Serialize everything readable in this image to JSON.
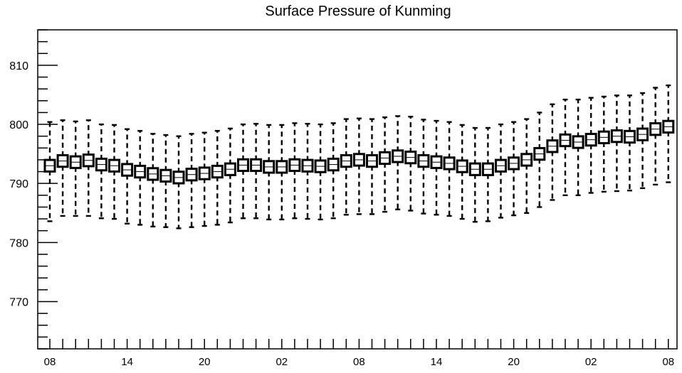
{
  "chart_data": {
    "type": "box",
    "title": "Surface Pressure of Kunming",
    "xlabel": "",
    "ylabel": "",
    "ylim": [
      762,
      816
    ],
    "y_ticks": [
      770,
      780,
      790,
      800,
      810
    ],
    "x_tick_labels": [
      "08",
      "14",
      "20",
      "02",
      "08",
      "14",
      "20",
      "02",
      "08"
    ],
    "x_tick_positions": [
      0,
      6,
      12,
      18,
      24,
      30,
      36,
      42,
      48
    ],
    "grid": false,
    "series": [
      {
        "points": [
          {
            "x": 0,
            "median": 793.0,
            "q1": 792.2,
            "q3": 793.8,
            "whisker_low": 783.6,
            "whisker_high": 800.4
          },
          {
            "x": 1,
            "median": 793.8,
            "q1": 793.0,
            "q3": 794.6,
            "whisker_low": 784.5,
            "whisker_high": 800.7
          },
          {
            "x": 2,
            "median": 793.6,
            "q1": 792.8,
            "q3": 794.4,
            "whisker_low": 784.5,
            "whisker_high": 800.5
          },
          {
            "x": 3,
            "median": 793.9,
            "q1": 793.1,
            "q3": 794.7,
            "whisker_low": 784.5,
            "whisker_high": 800.7
          },
          {
            "x": 4,
            "median": 793.2,
            "q1": 792.4,
            "q3": 794.0,
            "whisker_low": 784.1,
            "whisker_high": 800.0
          },
          {
            "x": 5,
            "median": 793.0,
            "q1": 792.2,
            "q3": 793.8,
            "whisker_low": 784.0,
            "whisker_high": 799.9
          },
          {
            "x": 6,
            "median": 792.3,
            "q1": 791.5,
            "q3": 793.1,
            "whisker_low": 783.2,
            "whisker_high": 799.2
          },
          {
            "x": 7,
            "median": 792.0,
            "q1": 791.2,
            "q3": 792.8,
            "whisker_low": 783.0,
            "whisker_high": 798.9
          },
          {
            "x": 8,
            "median": 791.6,
            "q1": 790.8,
            "q3": 792.4,
            "whisker_low": 782.7,
            "whisker_high": 798.4
          },
          {
            "x": 9,
            "median": 791.3,
            "q1": 790.5,
            "q3": 792.1,
            "whisker_low": 782.6,
            "whisker_high": 798.2
          },
          {
            "x": 10,
            "median": 791.0,
            "q1": 790.2,
            "q3": 791.8,
            "whisker_low": 782.4,
            "whisker_high": 798.0
          },
          {
            "x": 11,
            "median": 791.5,
            "q1": 790.7,
            "q3": 792.3,
            "whisker_low": 782.6,
            "whisker_high": 798.4
          },
          {
            "x": 12,
            "median": 791.7,
            "q1": 790.9,
            "q3": 792.5,
            "whisker_low": 782.8,
            "whisker_high": 798.6
          },
          {
            "x": 13,
            "median": 792.0,
            "q1": 791.2,
            "q3": 792.8,
            "whisker_low": 783.0,
            "whisker_high": 798.9
          },
          {
            "x": 14,
            "median": 792.4,
            "q1": 791.6,
            "q3": 793.2,
            "whisker_low": 783.4,
            "whisker_high": 799.3
          },
          {
            "x": 15,
            "median": 793.1,
            "q1": 792.3,
            "q3": 793.9,
            "whisker_low": 784.1,
            "whisker_high": 800.0
          },
          {
            "x": 16,
            "median": 793.1,
            "q1": 792.3,
            "q3": 793.9,
            "whisker_low": 784.1,
            "whisker_high": 800.1
          },
          {
            "x": 17,
            "median": 792.8,
            "q1": 792.0,
            "q3": 793.6,
            "whisker_low": 783.9,
            "whisker_high": 799.9
          },
          {
            "x": 18,
            "median": 792.8,
            "q1": 792.0,
            "q3": 793.6,
            "whisker_low": 783.9,
            "whisker_high": 799.9
          },
          {
            "x": 19,
            "median": 793.1,
            "q1": 792.3,
            "q3": 793.9,
            "whisker_low": 784.1,
            "whisker_high": 800.2
          },
          {
            "x": 20,
            "median": 793.0,
            "q1": 792.2,
            "q3": 793.8,
            "whisker_low": 784.0,
            "whisker_high": 800.1
          },
          {
            "x": 21,
            "median": 792.9,
            "q1": 792.1,
            "q3": 793.7,
            "whisker_low": 783.9,
            "whisker_high": 800.0
          },
          {
            "x": 22,
            "median": 793.2,
            "q1": 792.4,
            "q3": 794.0,
            "whisker_low": 784.1,
            "whisker_high": 800.2
          },
          {
            "x": 23,
            "median": 793.8,
            "q1": 793.0,
            "q3": 794.6,
            "whisker_low": 784.7,
            "whisker_high": 800.9
          },
          {
            "x": 24,
            "median": 794.0,
            "q1": 793.2,
            "q3": 794.8,
            "whisker_low": 784.8,
            "whisker_high": 801.0
          },
          {
            "x": 25,
            "median": 793.8,
            "q1": 793.0,
            "q3": 794.6,
            "whisker_low": 784.8,
            "whisker_high": 800.9
          },
          {
            "x": 26,
            "median": 794.3,
            "q1": 793.5,
            "q3": 795.1,
            "whisker_low": 785.2,
            "whisker_high": 801.2
          },
          {
            "x": 27,
            "median": 794.6,
            "q1": 793.8,
            "q3": 795.4,
            "whisker_low": 785.6,
            "whisker_high": 801.4
          },
          {
            "x": 28,
            "median": 794.4,
            "q1": 793.6,
            "q3": 795.2,
            "whisker_low": 785.4,
            "whisker_high": 801.3
          },
          {
            "x": 29,
            "median": 793.8,
            "q1": 793.0,
            "q3": 794.6,
            "whisker_low": 784.9,
            "whisker_high": 800.8
          },
          {
            "x": 30,
            "median": 793.6,
            "q1": 792.8,
            "q3": 794.4,
            "whisker_low": 784.7,
            "whisker_high": 800.6
          },
          {
            "x": 31,
            "median": 793.4,
            "q1": 792.6,
            "q3": 794.2,
            "whisker_low": 784.5,
            "whisker_high": 800.4
          },
          {
            "x": 32,
            "median": 792.9,
            "q1": 792.1,
            "q3": 793.7,
            "whisker_low": 784.0,
            "whisker_high": 799.9
          },
          {
            "x": 33,
            "median": 792.4,
            "q1": 791.6,
            "q3": 793.2,
            "whisker_low": 783.5,
            "whisker_high": 799.4
          },
          {
            "x": 34,
            "median": 792.4,
            "q1": 791.6,
            "q3": 793.2,
            "whisker_low": 783.6,
            "whisker_high": 799.4
          },
          {
            "x": 35,
            "median": 793.0,
            "q1": 792.2,
            "q3": 793.8,
            "whisker_low": 784.2,
            "whisker_high": 800.0
          },
          {
            "x": 36,
            "median": 793.4,
            "q1": 792.6,
            "q3": 794.2,
            "whisker_low": 784.6,
            "whisker_high": 800.4
          },
          {
            "x": 37,
            "median": 794.0,
            "q1": 793.2,
            "q3": 794.8,
            "whisker_low": 785.0,
            "whisker_high": 800.9
          },
          {
            "x": 38,
            "median": 795.0,
            "q1": 794.2,
            "q3": 795.8,
            "whisker_low": 786.0,
            "whisker_high": 802.0
          },
          {
            "x": 39,
            "median": 796.3,
            "q1": 795.5,
            "q3": 797.1,
            "whisker_low": 787.2,
            "whisker_high": 803.4
          },
          {
            "x": 40,
            "median": 797.3,
            "q1": 796.5,
            "q3": 798.1,
            "whisker_low": 788.0,
            "whisker_high": 804.2
          },
          {
            "x": 41,
            "median": 797.0,
            "q1": 796.2,
            "q3": 797.8,
            "whisker_low": 788.0,
            "whisker_high": 804.2
          },
          {
            "x": 42,
            "median": 797.4,
            "q1": 796.6,
            "q3": 798.2,
            "whisker_low": 788.4,
            "whisker_high": 804.5
          },
          {
            "x": 43,
            "median": 797.8,
            "q1": 797.0,
            "q3": 798.6,
            "whisker_low": 788.6,
            "whisker_high": 804.7
          },
          {
            "x": 44,
            "median": 798.0,
            "q1": 797.2,
            "q3": 798.8,
            "whisker_low": 788.7,
            "whisker_high": 804.9
          },
          {
            "x": 45,
            "median": 797.9,
            "q1": 797.1,
            "q3": 798.7,
            "whisker_low": 788.8,
            "whisker_high": 804.9
          },
          {
            "x": 46,
            "median": 798.3,
            "q1": 797.5,
            "q3": 799.1,
            "whisker_low": 789.2,
            "whisker_high": 805.3
          },
          {
            "x": 47,
            "median": 799.2,
            "q1": 798.4,
            "q3": 800.0,
            "whisker_low": 789.8,
            "whisker_high": 806.2
          },
          {
            "x": 48,
            "median": 799.6,
            "q1": 798.8,
            "q3": 800.4,
            "whisker_low": 790.2,
            "whisker_high": 806.6
          }
        ]
      }
    ]
  }
}
